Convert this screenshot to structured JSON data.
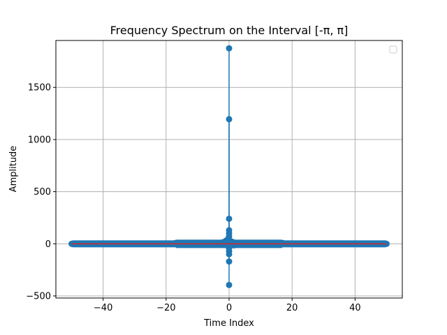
{
  "chart_data": {
    "type": "stem",
    "title": "Frequency Spectrum on the Interval [-π, π]",
    "xlabel": "Time Index",
    "ylabel": "Amplitude",
    "xlim": [
      -55,
      55
    ],
    "ylim": [
      -520,
      1950
    ],
    "xticks": [
      -40,
      -20,
      0,
      20,
      40
    ],
    "yticks": [
      -500,
      0,
      500,
      1000,
      1500
    ],
    "xtick_labels": [
      "−40",
      "−20",
      "0",
      "20",
      "40"
    ],
    "ytick_labels": [
      "−500",
      "0",
      "500",
      "1000",
      "1500"
    ],
    "grid": true,
    "legend": "top-right (empty)",
    "colors": {
      "stem": "#1f77b4",
      "baseline": "#d62728",
      "grid": "#b0b0b0"
    },
    "series": [
      {
        "x": [
          -50,
          -40,
          -30,
          -20,
          -17,
          -15,
          -10,
          -5,
          -2,
          -1.5,
          -1,
          -0.5,
          -0.25,
          0,
          0,
          0,
          0,
          0,
          0,
          0,
          0,
          0,
          0,
          0,
          0,
          0.25,
          0.5,
          1,
          1.5,
          2,
          5,
          10,
          15,
          17,
          20,
          30,
          40,
          50
        ],
        "y": [
          0,
          0,
          0,
          0,
          8,
          8,
          8,
          8,
          15,
          10,
          30,
          -20,
          50,
          1875,
          1195,
          240,
          130,
          100,
          70,
          40,
          -40,
          -70,
          -100,
          -170,
          -395,
          25,
          -10,
          20,
          -15,
          10,
          8,
          8,
          8,
          8,
          0,
          0,
          0,
          0
        ]
      }
    ]
  }
}
